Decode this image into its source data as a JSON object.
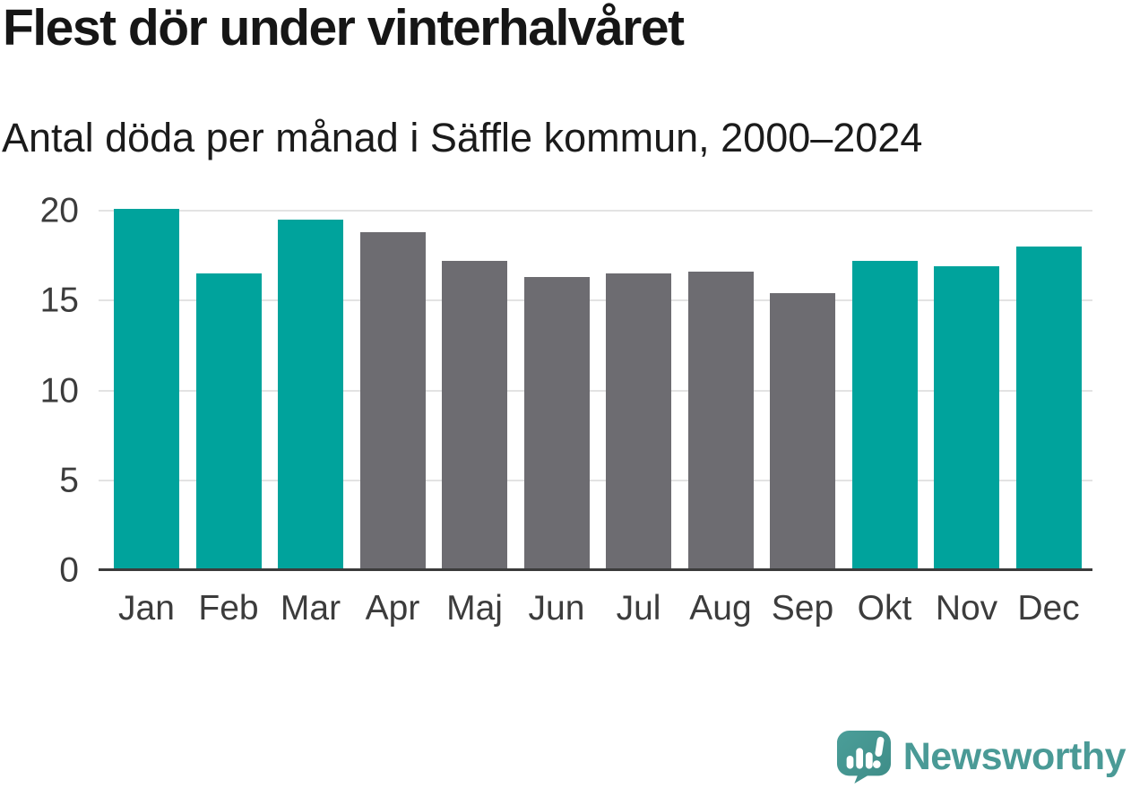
{
  "chart_data": {
    "type": "bar",
    "title": "Flest dör under vinterhalvåret",
    "subtitle": "Antal döda per månad i Säffle kommun, 2000–2024",
    "categories": [
      "Jan",
      "Feb",
      "Mar",
      "Apr",
      "Maj",
      "Jun",
      "Jul",
      "Aug",
      "Sep",
      "Okt",
      "Nov",
      "Dec"
    ],
    "values": [
      20.1,
      16.5,
      19.5,
      18.8,
      17.2,
      16.3,
      16.5,
      16.6,
      15.4,
      17.2,
      16.9,
      18.0
    ],
    "groups": [
      "winter",
      "winter",
      "winter",
      "summer",
      "summer",
      "summer",
      "summer",
      "summer",
      "summer",
      "winter",
      "winter",
      "winter"
    ],
    "colors": {
      "winter": "#00a39c",
      "summer": "#6d6c71"
    },
    "xlabel": "",
    "ylabel": "",
    "yticks": [
      0,
      5,
      10,
      15,
      20
    ],
    "ylim": [
      0,
      20.7
    ],
    "grid": true,
    "legend_position": "none"
  },
  "style": {
    "background": "#ffffff",
    "axis_color": "#3b3b3b",
    "grid_color": "#e3e3e3",
    "tick_label_color": "#3c3c3c",
    "title_color": "#161616"
  },
  "footer": {
    "brand": "Newsworthy",
    "brand_color": "#4a9a96",
    "logo_icon": "speech-bubble-bar-chart-icon"
  }
}
